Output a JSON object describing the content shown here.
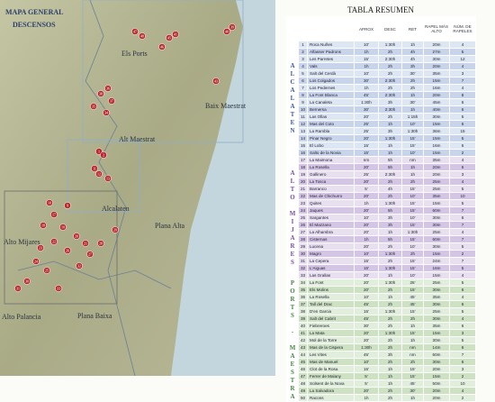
{
  "map": {
    "title": "MAPA GENERAL",
    "subtitle": "DESCENSOS",
    "regions": [
      "Els Ports",
      "Baix Maestrat",
      "Alt Maestrat",
      "Alcalaten",
      "Plana Alta",
      "Alto Mijares",
      "Alto Palancia",
      "Plana Baixa"
    ],
    "markers": [
      "39",
      "40",
      "41",
      "45",
      "46",
      "47",
      "48",
      "36",
      "37",
      "38",
      "34",
      "35",
      "43",
      "1",
      "2",
      "11",
      "12",
      "13",
      "10",
      "9",
      "17",
      "18",
      "19",
      "20",
      "21",
      "22",
      "23",
      "24",
      "25",
      "26",
      "27",
      "28",
      "29",
      "30",
      "31",
      "32",
      "33"
    ]
  },
  "table": {
    "title": "TABLA RESUMEN",
    "columns": [
      "APROX",
      "DESC",
      "RET",
      "RAPEL MÁS ALTO",
      "NÚM. DE RAPELES"
    ],
    "sections": [
      {
        "name": "ALCALATEN",
        "rows": [
          [
            1,
            "Roca Nuñes",
            "10'",
            "1:30h",
            "1h",
            "20m",
            4
          ],
          [
            2,
            "Alfasser Padrons",
            "1h",
            "2h",
            "4h",
            "27m",
            5
          ],
          [
            3,
            "Les Parretes",
            "15'",
            "2:30h",
            "4h",
            "30m",
            12
          ],
          [
            4,
            "Vals",
            "1h",
            "2h",
            "3h",
            "20m",
            4
          ],
          [
            5,
            "Salt del Cerdà",
            "10'",
            "2h",
            "30'",
            "35m",
            3
          ],
          [
            6,
            "Los Colgados",
            "30'",
            "2:30h",
            "2h",
            "15m",
            7
          ],
          [
            7,
            "Los Pedernes",
            "1h",
            "2h",
            "2h",
            "16m",
            4
          ],
          [
            8,
            "La Font Blanca",
            "45'",
            "2:30h",
            "1h",
            "20m",
            8
          ],
          [
            9,
            "La Canaleta",
            "1:30h",
            "3h",
            "30'",
            "45m",
            6
          ],
          [
            10,
            "Bernersa",
            "30'",
            "2:30h",
            "1h",
            "40m",
            6
          ],
          [
            11,
            "Las Ollas",
            "20'",
            "2h",
            "1:15h",
            "30m",
            5
          ],
          [
            12,
            "Mas del Coto",
            "25'",
            "1h",
            "10'",
            "15m",
            6
          ],
          [
            13,
            "La Rambla",
            "25'",
            "3h",
            "1:30h",
            "36m",
            15
          ],
          [
            14,
            "Pinar Negro",
            "20'",
            "1:30h",
            "15'",
            "15m",
            5
          ],
          [
            15,
            "El Lobo",
            "15'",
            "1h",
            "15'",
            "16m",
            6
          ],
          [
            16,
            "Salto de la Novia",
            "15'",
            "1h",
            "10'",
            "15m",
            2
          ]
        ]
      },
      {
        "name": "ALTO MIJARES",
        "rows": [
          [
            17,
            "La Maimona",
            "nm",
            "5h",
            "nm",
            "35m",
            4
          ],
          [
            18,
            "La Rosella",
            "20'",
            "5h",
            "1h",
            "20m",
            6
          ],
          [
            19,
            "Gallinero",
            "25'",
            "2:30h",
            "1h",
            "20m",
            3
          ],
          [
            20,
            "La Tosca",
            "20'",
            "2h",
            "2h",
            "25m",
            4
          ],
          [
            21,
            "Barranco",
            "5'",
            "4h",
            "15'",
            "25m",
            5
          ],
          [
            22,
            "Mas de Chichurro",
            "20'",
            "2h",
            "10'",
            "35m",
            10
          ],
          [
            23,
            "Quites",
            "1h",
            "1:30h",
            "15'",
            "15m",
            5
          ],
          [
            24,
            "Jaques",
            "20'",
            "5h",
            "15'",
            "60m",
            7
          ],
          [
            25,
            "Sargantes",
            "10'",
            "3h",
            "10'",
            "30m",
            6
          ],
          [
            26,
            "El Mazzano",
            "20'",
            "3h",
            "15'",
            "30m",
            7
          ],
          [
            27,
            "La Alhambra",
            "20'",
            "1h",
            "1:30h",
            "25m",
            4
          ],
          [
            28,
            "Cisternas",
            "1h",
            "5h",
            "15'",
            "60m",
            7
          ],
          [
            29,
            "Lucena",
            "20'",
            "2h",
            "10'",
            "30m",
            5
          ],
          [
            30,
            "Magro",
            "10'",
            "1:30h",
            "2h",
            "15m",
            2
          ],
          [
            31,
            "La Cepera",
            "15'",
            "2h",
            "15'",
            "24m",
            7
          ],
          [
            32,
            "L'Aiguas",
            "15'",
            "1:30h",
            "15'",
            "16m",
            5
          ],
          [
            33,
            "Las Grallas",
            "20'",
            "1h",
            "10'",
            "15m",
            4
          ]
        ]
      },
      {
        "name": "PORTS - MAESTRAT",
        "rows": [
          [
            34,
            "La Font",
            "20'",
            "1:30h",
            "25'",
            "25m",
            5
          ],
          [
            35,
            "Els Molins",
            "20'",
            "2h",
            "15'",
            "30m",
            6
          ],
          [
            36,
            "La Rosella",
            "10'",
            "1h",
            "45'",
            "35m",
            4
          ],
          [
            37,
            "Tall del Drac",
            "45'",
            "2h",
            "45'",
            "30m",
            6
          ],
          [
            38,
            "D'en Garcia",
            "15'",
            "1:30h",
            "15'",
            "25m",
            5
          ],
          [
            39,
            "Salt del Cabrit",
            "45'",
            "2h",
            "2h",
            "30m",
            4
          ],
          [
            40,
            "Fiebreroes",
            "30'",
            "2h",
            "1h",
            "35m",
            6
          ],
          [
            41,
            "La Mata",
            "20'",
            "1:30h",
            "15'",
            "15m",
            3
          ],
          [
            42,
            "Mol de la Torre",
            "20'",
            "2h",
            "1h",
            "30m",
            5
          ],
          [
            43,
            "Mas de la Cispera",
            "1:30h",
            "2h",
            "nm",
            "14m",
            6
          ],
          [
            44,
            "Les Vites",
            "45'",
            "3h",
            "nm",
            "60m",
            7
          ],
          [
            45,
            "Mas de Manuel",
            "10'",
            "2h",
            "2h",
            "30m",
            6
          ],
          [
            46,
            "Clot de la Rosa",
            "15'",
            "1h",
            "15'",
            "20m",
            3
          ],
          [
            47,
            "Ferrer de Malany",
            "5'",
            "1h",
            "15'",
            "15m",
            2
          ],
          [
            48,
            "Solsent de la Nova",
            "5'",
            "1h",
            "45'",
            "50m",
            10
          ],
          [
            49,
            "La Salvadora",
            "20'",
            "2h",
            "30'",
            "20m",
            4
          ],
          [
            50,
            "Racons",
            "1h",
            "2h",
            "1h",
            "20m",
            2
          ]
        ]
      }
    ]
  }
}
